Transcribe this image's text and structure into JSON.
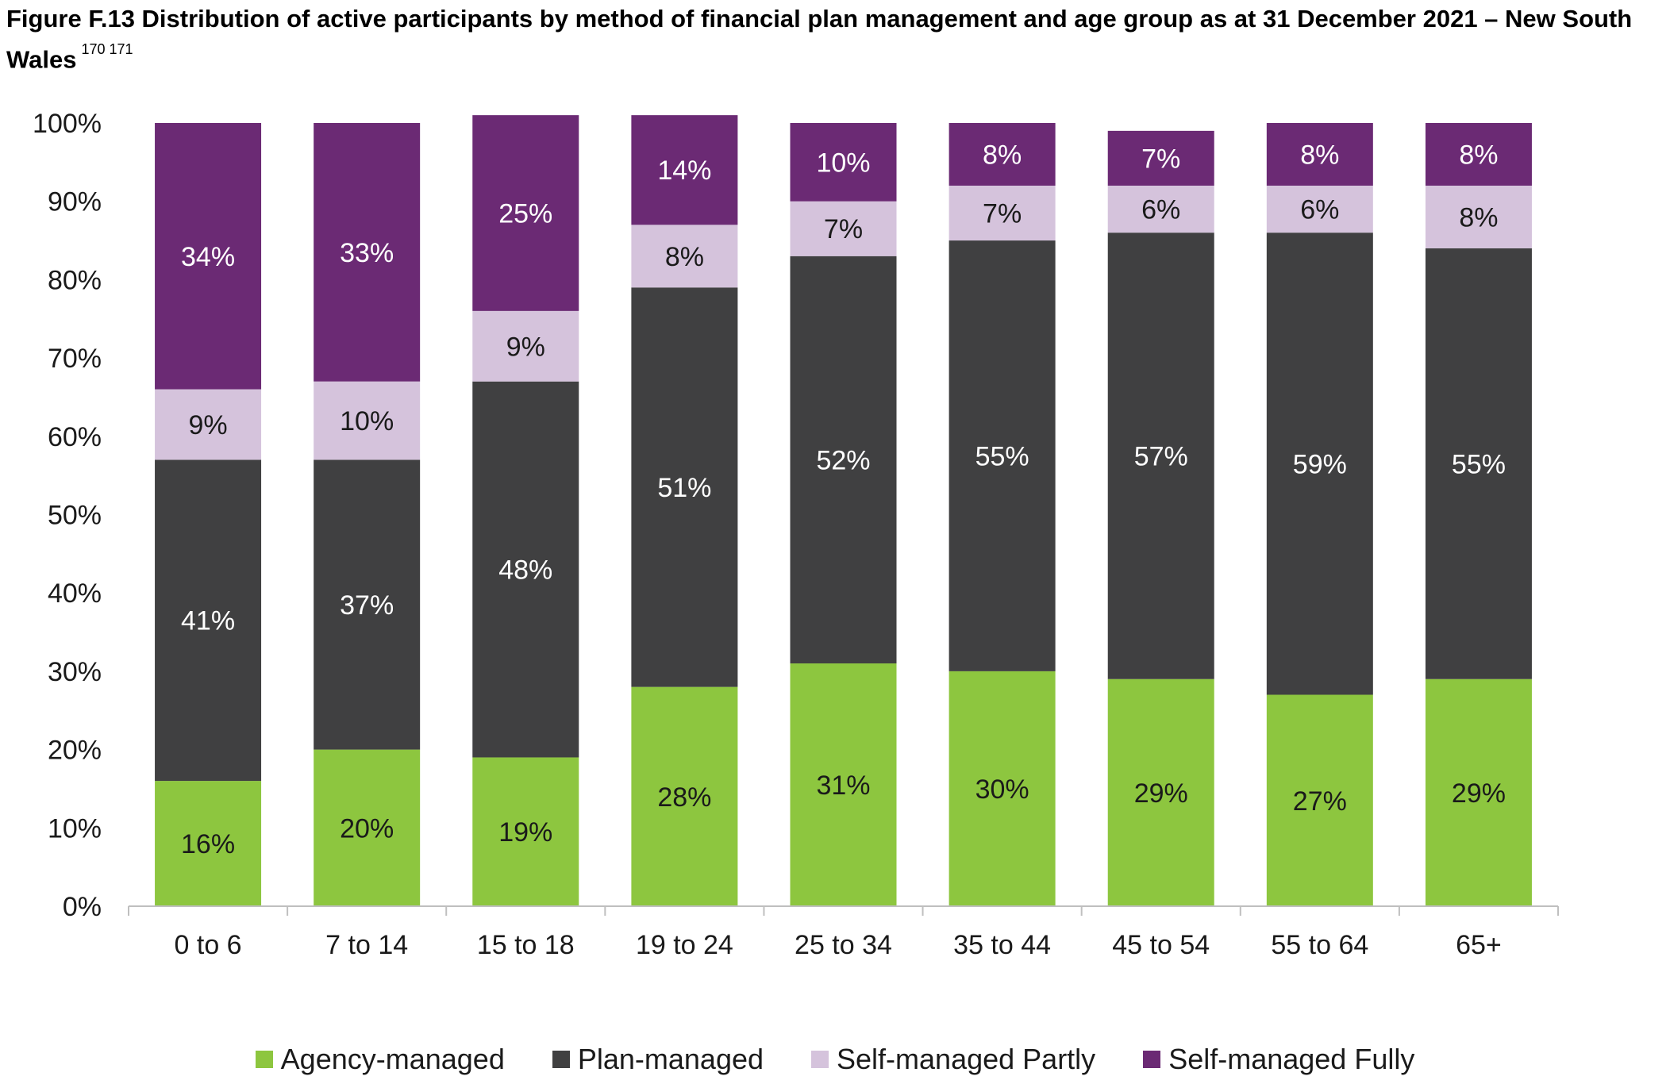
{
  "title": {
    "main": "Figure F.13 Distribution of active participants by method of financial plan management and age group as at 31 December 2021 – New South Wales",
    "footnotes": "170 171"
  },
  "chart_data": {
    "type": "bar",
    "stacked": true,
    "categories": [
      "0 to 6",
      "7 to 14",
      "15 to 18",
      "19 to 24",
      "25 to 34",
      "35 to 44",
      "45 to 54",
      "55 to 64",
      "65+"
    ],
    "series": [
      {
        "name": "Agency-managed",
        "color": "#8dc63f",
        "label_color": "#1a1a1a",
        "values": [
          16,
          20,
          19,
          28,
          31,
          30,
          29,
          27,
          29
        ]
      },
      {
        "name": "Plan-managed",
        "color": "#404041",
        "label_color": "#ffffff",
        "values": [
          41,
          37,
          48,
          51,
          52,
          55,
          57,
          59,
          55
        ]
      },
      {
        "name": "Self-managed Partly",
        "color": "#d5c3dc",
        "label_color": "#1a1a1a",
        "values": [
          9,
          10,
          9,
          8,
          7,
          7,
          6,
          6,
          8
        ]
      },
      {
        "name": "Self-managed Fully",
        "color": "#6b2a74",
        "label_color": "#ffffff",
        "values": [
          34,
          33,
          25,
          14,
          10,
          8,
          7,
          8,
          8
        ]
      }
    ],
    "y_ticks": [
      "0%",
      "10%",
      "20%",
      "30%",
      "40%",
      "50%",
      "60%",
      "70%",
      "80%",
      "90%",
      "100%"
    ],
    "ylim": [
      0,
      100
    ],
    "value_suffix": "%",
    "grid": false,
    "legend_position": "bottom"
  }
}
